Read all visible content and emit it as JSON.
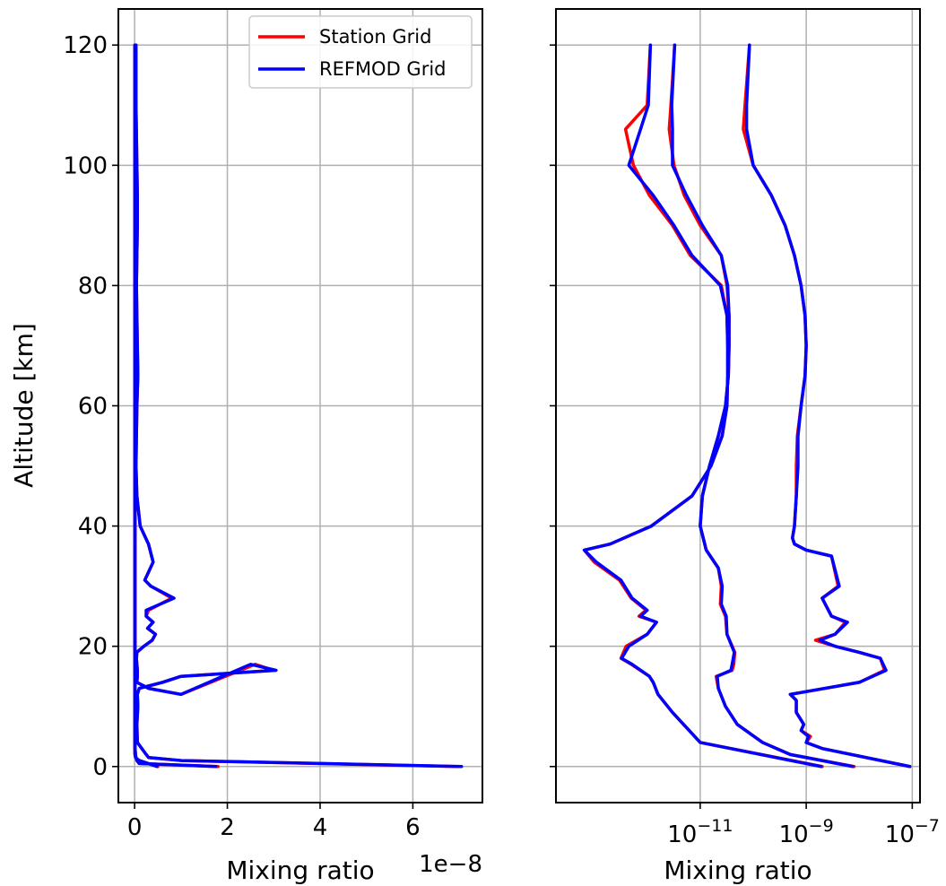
{
  "chart_data": [
    {
      "type": "line",
      "xlabel": "Mixing ratio",
      "ylabel": "Altitude [km]",
      "x_offset_label": "1e−8",
      "x_scale": "linear",
      "x_multiplier": 1e-08,
      "xlim": [
        -0.35,
        7.5
      ],
      "ylim": [
        -6,
        126
      ],
      "xticks": [
        0,
        2,
        4,
        6
      ],
      "xtick_labels": [
        "0",
        "2",
        "4",
        "6"
      ],
      "yticks": [
        0,
        20,
        40,
        60,
        80,
        100,
        120
      ],
      "ytick_labels": [
        "0",
        "20",
        "40",
        "60",
        "80",
        "100",
        "120"
      ],
      "grid": true,
      "legend": {
        "placement": "top-right",
        "entries": [
          {
            "label": "Station Grid",
            "color": "#ff0000"
          },
          {
            "label": "REFMOD Grid",
            "color": "#0000ff"
          }
        ]
      },
      "series": [
        {
          "name": "Station Grid",
          "color": "#ff0000",
          "x": [
            0.03,
            0.03,
            0.04,
            0.05,
            0.06,
            0.06,
            0.05,
            0.04,
            0.05,
            0.06,
            0.07,
            0.05,
            0.04,
            0.03,
            0.05,
            0.12,
            0.3,
            0.4,
            0.22,
            0.35,
            0.8,
            0.3,
            0.25,
            0.4,
            0.28,
            0.45,
            0.38,
            0.2,
            0.05,
            0.04,
            0.05,
            0.06,
            0.06,
            0.05,
            0.3,
            1.0,
            2.6,
            3.0,
            1.0,
            0.6,
            0.1,
            0.06,
            0.07,
            0.05,
            0.06,
            0.25,
            0.3,
            1.0,
            7.0
          ],
          "y": [
            120,
            110,
            105,
            100,
            95,
            90,
            85,
            80,
            75,
            70,
            65,
            60,
            55,
            50,
            45,
            40,
            37,
            34,
            31,
            30,
            28,
            26,
            25,
            24,
            23,
            22,
            21,
            20,
            19,
            18,
            17,
            16,
            15,
            14,
            13,
            12,
            17,
            16,
            15,
            14,
            13,
            12,
            10,
            7,
            4,
            2,
            1.5,
            1,
            0
          ]
        },
        {
          "name": "Station Grid",
          "color": "#ff0000",
          "x": [
            0.01,
            0.01,
            0.01,
            0.01,
            0.01,
            0.01,
            0.01,
            0.01,
            0.01,
            0.01,
            0.01,
            0.01,
            0.01,
            0.01,
            0.01,
            0.02,
            0.03,
            0.05,
            0.1,
            1.8
          ],
          "y": [
            120,
            100,
            90,
            80,
            70,
            60,
            50,
            40,
            30,
            20,
            15,
            10,
            5,
            4,
            3,
            2,
            1.5,
            1,
            0.5,
            0
          ]
        },
        {
          "name": "Station Grid",
          "color": "#ff0000",
          "x": [
            0.005,
            0.005,
            0.005,
            0.005,
            0.005,
            0.005,
            0.005,
            0.005,
            0.005,
            0.005,
            0.006,
            0.008,
            0.02,
            0.1,
            0.5
          ],
          "y": [
            120,
            100,
            80,
            60,
            40,
            30,
            20,
            15,
            10,
            5,
            3,
            2,
            1.5,
            1,
            0
          ]
        },
        {
          "name": "REFMOD Grid",
          "color": "#0000ff",
          "x": [
            0.03,
            0.03,
            0.04,
            0.05,
            0.06,
            0.06,
            0.05,
            0.04,
            0.05,
            0.06,
            0.07,
            0.05,
            0.04,
            0.03,
            0.05,
            0.12,
            0.3,
            0.4,
            0.22,
            0.35,
            0.85,
            0.25,
            0.25,
            0.4,
            0.28,
            0.45,
            0.38,
            0.2,
            0.05,
            0.04,
            0.05,
            0.06,
            0.06,
            0.05,
            0.3,
            1.0,
            2.5,
            3.05,
            1.0,
            0.6,
            0.1,
            0.06,
            0.07,
            0.05,
            0.06,
            0.25,
            0.3,
            1.0,
            7.05
          ],
          "y": [
            120,
            110,
            105,
            100,
            95,
            90,
            85,
            80,
            75,
            70,
            65,
            60,
            55,
            50,
            45,
            40,
            37,
            34,
            31,
            30,
            28,
            26,
            25,
            24,
            23,
            22,
            21,
            20,
            19,
            18,
            17,
            16,
            15,
            14,
            13,
            12,
            17,
            16,
            15,
            14,
            13,
            12,
            10,
            7,
            4,
            2,
            1.5,
            1,
            0
          ]
        },
        {
          "name": "REFMOD Grid",
          "color": "#0000ff",
          "x": [
            0.01,
            0.01,
            0.01,
            0.01,
            0.01,
            0.01,
            0.01,
            0.01,
            0.01,
            0.01,
            0.01,
            0.01,
            0.01,
            0.01,
            0.01,
            0.02,
            0.03,
            0.05,
            0.1,
            1.75
          ],
          "y": [
            120,
            100,
            90,
            80,
            70,
            60,
            50,
            40,
            30,
            20,
            15,
            10,
            5,
            4,
            3,
            2,
            1.5,
            1,
            0.5,
            0
          ]
        },
        {
          "name": "REFMOD Grid",
          "color": "#0000ff",
          "x": [
            0.005,
            0.005,
            0.005,
            0.005,
            0.005,
            0.005,
            0.005,
            0.005,
            0.005,
            0.005,
            0.006,
            0.008,
            0.02,
            0.1,
            0.48
          ],
          "y": [
            120,
            100,
            80,
            60,
            40,
            30,
            20,
            15,
            10,
            5,
            3,
            2,
            1.5,
            1,
            0
          ]
        }
      ]
    },
    {
      "type": "line",
      "xlabel": "Mixing ratio",
      "ylabel": "",
      "x_scale": "log",
      "xlim": [
        1.9e-14,
        1.4e-07
      ],
      "ylim": [
        -6,
        126
      ],
      "xticks": [
        1e-11,
        1e-09,
        1e-07
      ],
      "xtick_labels": [
        {
          "base": "10",
          "exp": "−11"
        },
        {
          "base": "10",
          "exp": "−9"
        },
        {
          "base": "10",
          "exp": "−7"
        }
      ],
      "yticks": [
        0,
        20,
        40,
        60,
        80,
        100,
        120
      ],
      "grid": true,
      "series": [
        {
          "name": "Station Grid",
          "color": "#ff0000",
          "x": [
            1.15e-12,
            1e-12,
            3.9e-13,
            5.5e-13,
            1.1e-12,
            3e-12,
            6.5e-12,
            2.5e-11,
            3.2e-11,
            3.3e-11,
            3.3e-11,
            3.2e-11,
            2.6e-11,
            1.6e-11,
            7e-12,
            1.2e-12,
            2e-13,
            6.5e-14,
            1e-13,
            3e-13,
            5e-13,
            9.5e-13,
            7e-13,
            1.5e-12,
            1e-12,
            4e-13,
            3.2e-13,
            5e-13,
            1.1e-12,
            1.3e-12,
            1.6e-12,
            3e-12,
            1e-11,
            2e-09
          ],
          "y": [
            120,
            110,
            106,
            100,
            95,
            90,
            85,
            80,
            75,
            70,
            65,
            60,
            55,
            50,
            45,
            40,
            37,
            36,
            34,
            31,
            28,
            26,
            25,
            24,
            22,
            20,
            18,
            17,
            15,
            14,
            12,
            9,
            4,
            0
          ]
        },
        {
          "name": "Station Grid",
          "color": "#ff0000",
          "x": [
            3.3e-12,
            2.8e-12,
            2.6e-12,
            3.2e-12,
            5e-12,
            1e-11,
            2.5e-11,
            3.2e-11,
            3.5e-11,
            3.5e-11,
            3.4e-11,
            3e-11,
            2.2e-11,
            1.5e-11,
            1.1e-11,
            1e-11,
            1.3e-11,
            2.2e-11,
            2.5e-11,
            2.4e-11,
            3e-11,
            3.2e-11,
            4.5e-11,
            4.3e-11,
            4e-11,
            2e-11,
            2.2e-11,
            3e-11,
            5e-11,
            1.5e-10,
            5e-10,
            8e-09
          ],
          "y": [
            120,
            110,
            106,
            100,
            95,
            90,
            85,
            80,
            75,
            70,
            65,
            60,
            55,
            50,
            45,
            40,
            36,
            33,
            30,
            27,
            25,
            22,
            19,
            17,
            16,
            15,
            13,
            10,
            7,
            4,
            2,
            0
          ]
        },
        {
          "name": "Station Grid",
          "color": "#ff0000",
          "x": [
            8.5e-11,
            7e-11,
            6.5e-11,
            1e-10,
            2.2e-10,
            4e-10,
            6e-10,
            8e-10,
            9.5e-10,
            1e-09,
            9.5e-10,
            8e-10,
            6.8e-10,
            6.5e-10,
            6.5e-10,
            6e-10,
            5.5e-10,
            6e-10,
            1e-09,
            3e-09,
            4e-09,
            2e-09,
            3e-09,
            5.5e-09,
            3.5e-09,
            1.5e-09,
            3.5e-09,
            1e-08,
            2.5e-08,
            3e-08,
            1e-08,
            5e-10,
            6.5e-10,
            6.5e-10,
            9e-10,
            8e-10,
            1.2e-09,
            1e-09,
            2e-09,
            9e-08
          ],
          "y": [
            120,
            110,
            106,
            100,
            95,
            90,
            85,
            80,
            75,
            70,
            65,
            60,
            55,
            50,
            45,
            40,
            38,
            37,
            36,
            35,
            30,
            28,
            25,
            24,
            22,
            21,
            20,
            19,
            18,
            16,
            14,
            12,
            11,
            9,
            7,
            6,
            5,
            4,
            3,
            0
          ]
        },
        {
          "name": "REFMOD Grid",
          "color": "#0000ff",
          "x": [
            1.15e-12,
            1.05e-12,
            7.5e-13,
            4.5e-13,
            1.3e-12,
            3.2e-12,
            7e-12,
            2.4e-11,
            3.2e-11,
            3.3e-11,
            3.3e-11,
            3.2e-11,
            2.6e-11,
            1.6e-11,
            7e-12,
            1.2e-12,
            2e-13,
            6.5e-14,
            1.1e-13,
            3.2e-13,
            5.2e-13,
            1e-12,
            7.5e-13,
            1.5e-12,
            1e-12,
            4.5e-13,
            3.3e-13,
            5.2e-13,
            1.1e-12,
            1.3e-12,
            1.6e-12,
            3e-12,
            1e-11,
            1.9e-09
          ],
          "y": [
            120,
            110,
            106,
            100,
            95,
            90,
            85,
            80,
            75,
            70,
            65,
            60,
            55,
            50,
            45,
            40,
            37,
            36,
            34,
            31,
            28,
            26,
            25,
            24,
            22,
            20,
            18,
            17,
            15,
            14,
            12,
            9,
            4,
            0
          ]
        },
        {
          "name": "REFMOD Grid",
          "color": "#0000ff",
          "x": [
            3.3e-12,
            2.9e-12,
            3e-12,
            3e-12,
            5.5e-12,
            1.1e-11,
            2.5e-11,
            3.3e-11,
            3.5e-11,
            3.5e-11,
            3.4e-11,
            3e-11,
            2.2e-11,
            1.5e-11,
            1.1e-11,
            1e-11,
            1.3e-11,
            2.2e-11,
            2.6e-11,
            2.5e-11,
            3.1e-11,
            3.2e-11,
            4.4e-11,
            4e-11,
            3.8e-11,
            2.1e-11,
            2.2e-11,
            3e-11,
            5e-11,
            1.5e-10,
            5e-10,
            7.5e-09
          ],
          "y": [
            120,
            110,
            106,
            100,
            95,
            90,
            85,
            80,
            75,
            70,
            65,
            60,
            55,
            50,
            45,
            40,
            36,
            33,
            30,
            27,
            25,
            22,
            19,
            17,
            16,
            15,
            13,
            10,
            7,
            4,
            2,
            0
          ]
        },
        {
          "name": "REFMOD Grid",
          "color": "#0000ff",
          "x": [
            8.5e-11,
            7.5e-11,
            7.5e-11,
            1e-10,
            2.2e-10,
            4e-10,
            6e-10,
            8e-10,
            9.5e-10,
            1e-09,
            9.5e-10,
            8e-10,
            7e-10,
            7e-10,
            6.5e-10,
            6e-10,
            5.5e-10,
            6e-10,
            1e-09,
            3e-09,
            4.2e-09,
            2e-09,
            3e-09,
            6e-09,
            3.5e-09,
            1.8e-09,
            3.5e-09,
            1e-08,
            2.5e-08,
            3.2e-08,
            1e-08,
            5e-10,
            6.5e-10,
            6.5e-10,
            9e-10,
            8e-10,
            1.1e-09,
            1e-09,
            2e-09,
            9e-08
          ],
          "y": [
            120,
            110,
            106,
            100,
            95,
            90,
            85,
            80,
            75,
            70,
            65,
            60,
            55,
            50,
            45,
            40,
            38,
            37,
            36,
            35,
            30,
            28,
            25,
            24,
            22,
            21,
            20,
            19,
            18,
            16,
            14,
            12,
            11,
            9,
            7,
            6,
            5,
            4,
            3,
            0
          ]
        }
      ]
    }
  ]
}
